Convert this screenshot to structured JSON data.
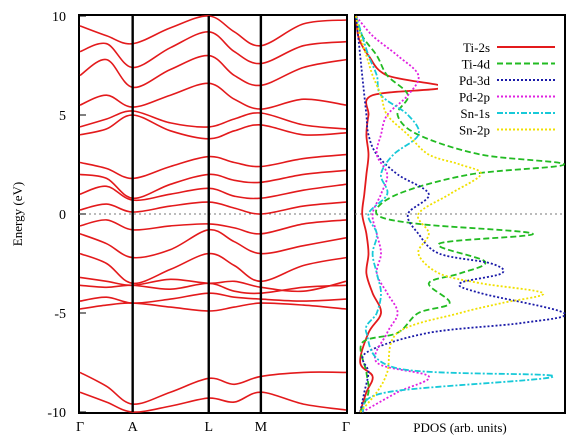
{
  "chart_data": [
    {
      "type": "line",
      "panel": "band-structure",
      "ylabel": "Energy (eV)",
      "ylim": [
        -10,
        10
      ],
      "yticks": [
        -10,
        -5,
        0,
        5,
        10
      ],
      "ytick_labels": [
        "-10",
        "-5",
        "0",
        "5",
        "10"
      ],
      "kpoints": [
        "Γ",
        "A",
        "L",
        "M",
        "Γ"
      ],
      "kpoint_positions": [
        0.0,
        0.198,
        0.484,
        0.68,
        1.0
      ],
      "line_color": "#e31a1c",
      "fermi_level": 0,
      "bands": [
        {
          "name": "b1",
          "x": [
            0,
            0.1,
            0.198,
            0.34,
            0.484,
            0.58,
            0.68,
            0.84,
            1
          ],
          "y": [
            -8.0,
            -8.7,
            -9.6,
            -9.0,
            -8.3,
            -8.6,
            -8.2,
            -8.0,
            -8.0
          ]
        },
        {
          "name": "b2",
          "x": [
            0,
            0.1,
            0.198,
            0.34,
            0.484,
            0.58,
            0.68,
            0.84,
            1
          ],
          "y": [
            -9.0,
            -9.5,
            -10.0,
            -9.7,
            -9.3,
            -9.5,
            -9.0,
            -9.6,
            -9.9
          ]
        },
        {
          "name": "b3",
          "x": [
            0,
            0.1,
            0.198,
            0.34,
            0.484,
            0.58,
            0.68,
            0.84,
            1
          ],
          "y": [
            -4.8,
            -4.6,
            -4.5,
            -4.7,
            -4.9,
            -4.7,
            -4.5,
            -4.6,
            -4.8
          ]
        },
        {
          "name": "b4",
          "x": [
            0,
            0.1,
            0.198,
            0.34,
            0.484,
            0.58,
            0.68,
            0.84,
            1
          ],
          "y": [
            -4.4,
            -4.2,
            -4.5,
            -4.3,
            -4.0,
            -4.2,
            -4.3,
            -4.4,
            -4.3
          ]
        },
        {
          "name": "b5",
          "x": [
            0,
            0.1,
            0.198,
            0.34,
            0.484,
            0.58,
            0.68,
            0.84,
            1
          ],
          "y": [
            -3.6,
            -3.7,
            -3.6,
            -3.8,
            -3.5,
            -3.9,
            -4.0,
            -3.7,
            -3.6
          ]
        },
        {
          "name": "b6",
          "x": [
            0,
            0.1,
            0.198,
            0.34,
            0.484,
            0.58,
            0.68,
            0.84,
            1
          ],
          "y": [
            -3.2,
            -3.4,
            -3.6,
            -3.3,
            -3.5,
            -3.4,
            -3.7,
            -3.9,
            -3.4
          ]
        },
        {
          "name": "b7",
          "x": [
            0,
            0.1,
            0.198,
            0.34,
            0.484,
            0.58,
            0.68,
            0.84,
            1
          ],
          "y": [
            -2.0,
            -2.5,
            -3.5,
            -2.8,
            -2.0,
            -2.6,
            -3.4,
            -2.6,
            -2.2
          ]
        },
        {
          "name": "b8",
          "x": [
            0,
            0.1,
            0.198,
            0.34,
            0.484,
            0.58,
            0.68,
            0.84,
            1
          ],
          "y": [
            -1.0,
            -1.5,
            -2.2,
            -1.8,
            -0.8,
            -1.4,
            -2.0,
            -1.6,
            -1.2
          ]
        },
        {
          "name": "b9",
          "x": [
            0,
            0.1,
            0.198,
            0.34,
            0.484,
            0.58,
            0.68,
            0.84,
            1
          ],
          "y": [
            -0.6,
            -0.3,
            -0.8,
            -0.6,
            -0.5,
            -0.7,
            -1.0,
            -0.5,
            -0.3
          ]
        },
        {
          "name": "b10",
          "x": [
            0,
            0.1,
            0.198,
            0.34,
            0.484,
            0.58,
            0.68,
            0.84,
            1
          ],
          "y": [
            0.2,
            0.5,
            0.1,
            0.4,
            0.6,
            0.3,
            0.0,
            0.4,
            0.6
          ]
        },
        {
          "name": "b11",
          "x": [
            0,
            0.1,
            0.198,
            0.34,
            0.484,
            0.58,
            0.68,
            0.84,
            1
          ],
          "y": [
            1.0,
            1.4,
            0.7,
            1.0,
            1.3,
            0.9,
            0.8,
            1.2,
            1.5
          ]
        },
        {
          "name": "b12",
          "x": [
            0,
            0.1,
            0.198,
            0.34,
            0.484,
            0.58,
            0.68,
            0.84,
            1
          ],
          "y": [
            2.0,
            1.8,
            0.8,
            1.5,
            2.0,
            1.7,
            1.6,
            2.0,
            2.2
          ]
        },
        {
          "name": "b13",
          "x": [
            0,
            0.1,
            0.198,
            0.34,
            0.484,
            0.58,
            0.68,
            0.84,
            1
          ],
          "y": [
            2.6,
            2.3,
            1.8,
            2.4,
            2.9,
            2.6,
            2.4,
            2.8,
            3.0
          ]
        },
        {
          "name": "b14",
          "x": [
            0,
            0.1,
            0.198,
            0.34,
            0.484,
            0.58,
            0.68,
            0.84,
            1
          ],
          "y": [
            4.0,
            4.3,
            5.0,
            4.2,
            3.8,
            4.2,
            4.5,
            4.0,
            4.1
          ]
        },
        {
          "name": "b15",
          "x": [
            0,
            0.1,
            0.198,
            0.34,
            0.484,
            0.58,
            0.68,
            0.84,
            1
          ],
          "y": [
            4.4,
            4.8,
            5.2,
            4.6,
            4.4,
            4.8,
            5.1,
            4.5,
            4.3
          ]
        },
        {
          "name": "b16",
          "x": [
            0,
            0.1,
            0.198,
            0.34,
            0.484,
            0.58,
            0.68,
            0.84,
            1
          ],
          "y": [
            5.5,
            6.0,
            5.4,
            6.0,
            6.6,
            5.8,
            5.3,
            5.8,
            5.5
          ]
        },
        {
          "name": "b17",
          "x": [
            0,
            0.1,
            0.198,
            0.34,
            0.484,
            0.58,
            0.68,
            0.84,
            1
          ],
          "y": [
            7.0,
            7.8,
            6.4,
            7.3,
            8.0,
            7.0,
            6.5,
            7.4,
            7.8
          ]
        },
        {
          "name": "b18",
          "x": [
            0,
            0.1,
            0.198,
            0.34,
            0.484,
            0.58,
            0.68,
            0.84,
            1
          ],
          "y": [
            8.2,
            8.6,
            7.4,
            8.4,
            9.2,
            8.2,
            7.6,
            8.5,
            8.7
          ]
        },
        {
          "name": "b19",
          "x": [
            0,
            0.1,
            0.198,
            0.34,
            0.484,
            0.58,
            0.68,
            0.84,
            1
          ],
          "y": [
            9.5,
            9.0,
            8.6,
            9.4,
            10.0,
            9.2,
            8.5,
            9.6,
            9.8
          ]
        }
      ]
    },
    {
      "type": "line",
      "panel": "pdos",
      "xlabel": "PDOS (arb. units)",
      "ylim": [
        -10,
        10
      ],
      "legend_position": "top-right",
      "series": [
        {
          "name": "Ti-2s",
          "color": "#e31a1c",
          "dash": "solid",
          "e": [
            -10,
            -9,
            -8.2,
            -7.5,
            -6,
            -5,
            -4,
            -3,
            -2,
            -1,
            0,
            1,
            2,
            3,
            4,
            5,
            6,
            6.4,
            7,
            8,
            8.5,
            9,
            10
          ],
          "v": [
            0.02,
            0.05,
            0.08,
            0.02,
            0.06,
            0.12,
            0.08,
            0.05,
            0.06,
            0.05,
            0.03,
            0.04,
            0.05,
            0.06,
            0.05,
            0.06,
            0.08,
            0.42,
            0.15,
            0.06,
            0.03,
            0.01,
            0.0
          ]
        },
        {
          "name": "Ti-4d",
          "color": "#22bb22",
          "dash": "dashed",
          "e": [
            -10,
            -9,
            -8,
            -6.5,
            -6,
            -5,
            -4.5,
            -3.5,
            -3,
            -2.4,
            -1.5,
            -1,
            -0.5,
            0,
            1,
            2,
            2.5,
            3,
            4,
            5,
            6,
            7,
            8,
            9,
            10
          ],
          "v": [
            0.02,
            0.06,
            0.05,
            0.03,
            0.2,
            0.3,
            0.45,
            0.35,
            0.5,
            0.62,
            0.4,
            0.85,
            0.3,
            0.1,
            0.2,
            0.55,
            1.0,
            0.6,
            0.3,
            0.2,
            0.25,
            0.15,
            0.1,
            0.03,
            0.0
          ]
        },
        {
          "name": "Pd-3d",
          "color": "#1a1aa8",
          "dash": "dotted",
          "e": [
            -10,
            -9,
            -8,
            -7,
            -6,
            -5.5,
            -5,
            -4,
            -3.5,
            -3,
            -2.5,
            -2,
            -1,
            0,
            1,
            2,
            3,
            4,
            5,
            6,
            7,
            8,
            9,
            10
          ],
          "v": [
            0.02,
            0.04,
            0.06,
            0.05,
            0.35,
            0.8,
            1.0,
            0.6,
            0.5,
            0.7,
            0.65,
            0.4,
            0.3,
            0.25,
            0.35,
            0.2,
            0.1,
            0.06,
            0.05,
            0.04,
            0.03,
            0.02,
            0.01,
            0.0
          ]
        },
        {
          "name": "Pd-2p",
          "color": "#e020e0",
          "dash": "dotted",
          "e": [
            -10,
            -9,
            -8.2,
            -7.5,
            -6,
            -5,
            -4,
            -3,
            -2,
            -1,
            0,
            1,
            2,
            3,
            4,
            5,
            6,
            7,
            8,
            9,
            10
          ],
          "v": [
            0.03,
            0.2,
            0.35,
            0.1,
            0.15,
            0.2,
            0.15,
            0.1,
            0.12,
            0.1,
            0.08,
            0.12,
            0.15,
            0.1,
            0.12,
            0.15,
            0.25,
            0.3,
            0.2,
            0.08,
            0.0
          ]
        },
        {
          "name": "Sn-1s",
          "color": "#17c9d8",
          "dash": "dashdot",
          "e": [
            -10,
            -9,
            -8.2,
            -7.8,
            -6,
            -5,
            -4,
            -3,
            -2,
            -1,
            0,
            1,
            2,
            3,
            4,
            5,
            6,
            7,
            8,
            9,
            10
          ],
          "v": [
            0.03,
            0.15,
            0.95,
            0.2,
            0.05,
            0.1,
            0.12,
            0.1,
            0.08,
            0.1,
            0.06,
            0.15,
            0.12,
            0.18,
            0.3,
            0.25,
            0.12,
            0.1,
            0.06,
            0.03,
            0.0
          ]
        },
        {
          "name": "Sn-2p",
          "color": "#f0e000",
          "dash": "dotted",
          "e": [
            -10,
            -9,
            -8,
            -6,
            -5,
            -4.5,
            -4,
            -3.5,
            -3,
            -2,
            -1,
            0,
            1,
            2,
            2.5,
            3,
            4,
            5,
            6,
            7,
            8,
            9,
            10
          ],
          "v": [
            0.02,
            0.1,
            0.15,
            0.2,
            0.5,
            0.7,
            0.9,
            0.6,
            0.4,
            0.3,
            0.35,
            0.3,
            0.45,
            0.6,
            0.5,
            0.35,
            0.25,
            0.15,
            0.12,
            0.08,
            0.05,
            0.02,
            0.0
          ]
        }
      ]
    }
  ]
}
